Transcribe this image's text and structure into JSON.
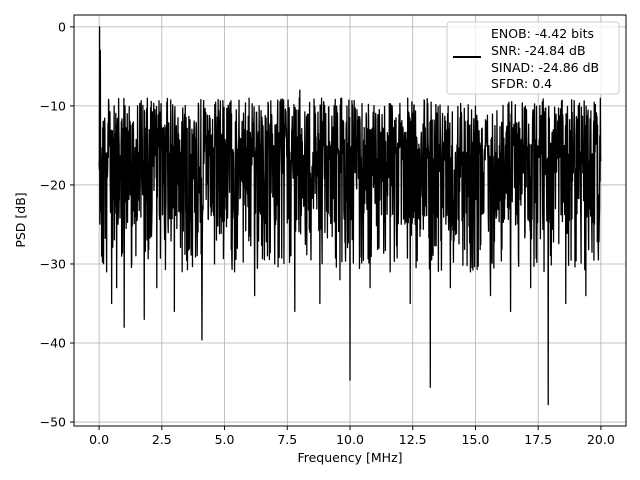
{
  "chart_data": {
    "type": "line",
    "title": "",
    "xlabel": "Frequency [MHz]",
    "ylabel": "PSD [dB]",
    "xlim": [
      -1,
      21
    ],
    "ylim": [
      -50.5,
      1.5
    ],
    "xticks": [
      0.0,
      2.5,
      5.0,
      7.5,
      10.0,
      12.5,
      15.0,
      17.5,
      20.0
    ],
    "xtick_labels": [
      "0.0",
      "2.5",
      "5.0",
      "7.5",
      "10.0",
      "12.5",
      "15.0",
      "17.5",
      "20.0"
    ],
    "yticks": [
      0,
      -10,
      -20,
      -30,
      -40,
      -50
    ],
    "ytick_labels": [
      "0",
      "−10",
      "−20",
      "−30",
      "−40",
      "−50"
    ],
    "grid": true,
    "legend_position": "top-right",
    "legend_lines": [
      "ENOB: -4.42 bits",
      "SNR: -24.84 dB",
      "SINAD: -24.86 dB",
      "SFDR: 0.4"
    ],
    "series": [
      {
        "color": "#000000",
        "description_points": "noise floor trace, approx. envelope between about -10 and -25 dB with deep dips",
        "x": [
          0.0,
          0.02,
          0.05,
          0.1,
          0.2,
          0.3,
          0.4,
          0.5,
          0.6,
          0.7,
          0.8,
          0.9,
          1.0,
          1.1,
          1.3,
          1.5,
          1.8,
          2.0,
          2.3,
          2.6,
          3.0,
          3.3,
          3.6,
          4.0,
          4.1,
          4.3,
          4.6,
          5.0,
          5.4,
          5.8,
          6.2,
          6.6,
          7.0,
          7.4,
          7.8,
          8.0,
          8.4,
          8.8,
          9.2,
          9.6,
          10.0,
          10.4,
          10.8,
          11.2,
          11.6,
          12.0,
          12.4,
          12.8,
          13.2,
          13.6,
          14.0,
          14.4,
          14.8,
          15.2,
          15.6,
          16.0,
          16.4,
          16.8,
          17.2,
          17.6,
          17.9,
          18.2,
          18.6,
          19.0,
          19.4,
          19.8,
          20.0
        ],
        "values": [
          -17,
          0,
          -3,
          -29,
          -12,
          -31,
          -14,
          -35,
          -10,
          -33,
          -15,
          -29,
          -38,
          -14,
          -30,
          -22,
          -37,
          -13,
          -33,
          -24,
          -36,
          -12,
          -28,
          -21,
          -39.6,
          -15,
          -30,
          -18,
          -31,
          -13,
          -34,
          -20,
          -30,
          -14,
          -36,
          -8,
          -26,
          -35,
          -15,
          -32,
          -44.7,
          -12,
          -33,
          -17,
          -31,
          -14,
          -35,
          -21,
          -45.6,
          -13,
          -33,
          -19,
          -31,
          -15,
          -34,
          -22,
          -36,
          -16,
          -33,
          -20,
          -47.8,
          -15,
          -35,
          -18,
          -34,
          -13,
          -17
        ]
      }
    ]
  }
}
